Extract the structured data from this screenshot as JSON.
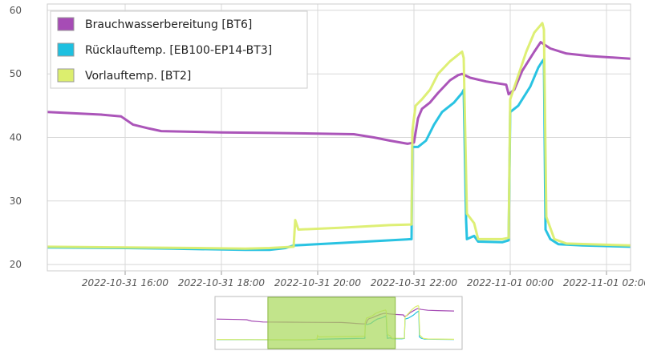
{
  "chart_data": {
    "type": "line",
    "title": "",
    "xlabel": "",
    "ylabel": "",
    "ylim": [
      19,
      61
    ],
    "xlim": [
      "2022-10-31 14:23",
      "2022-11-01 02:30"
    ],
    "y_ticks": [
      20,
      30,
      40,
      50,
      60
    ],
    "x_ticks": [
      {
        "t": "2022-10-31 16:00",
        "label": "2022-10-31 16:00"
      },
      {
        "t": "2022-10-31 18:00",
        "label": "2022-10-31 18:00"
      },
      {
        "t": "2022-10-31 20:00",
        "label": "2022-10-31 20:00"
      },
      {
        "t": "2022-10-31 22:00",
        "label": "2022-10-31 22:00"
      },
      {
        "t": "2022-11-01 00:00",
        "label": "2022-11-01 00:00"
      },
      {
        "t": "2022-11-01 02:00",
        "label": "2022-11-01 02:00"
      }
    ],
    "grid": true,
    "legend_position": "top-left",
    "series": [
      {
        "name": "Brauchwasserbereitung [BT6]",
        "color": "#A64CB5",
        "points": [
          [
            "2022-10-31 14:23",
            44.0
          ],
          [
            "2022-10-31 15:30",
            43.6
          ],
          [
            "2022-10-31 15:55",
            43.3
          ],
          [
            "2022-10-31 16:10",
            42.0
          ],
          [
            "2022-10-31 16:30",
            41.4
          ],
          [
            "2022-10-31 16:45",
            41.0
          ],
          [
            "2022-10-31 18:00",
            40.8
          ],
          [
            "2022-10-31 19:00",
            40.7
          ],
          [
            "2022-10-31 20:00",
            40.6
          ],
          [
            "2022-10-31 20:45",
            40.5
          ],
          [
            "2022-10-31 21:10",
            40.0
          ],
          [
            "2022-10-31 21:30",
            39.5
          ],
          [
            "2022-10-31 21:52",
            39.0
          ],
          [
            "2022-10-31 22:00",
            39.2
          ],
          [
            "2022-10-31 22:05",
            43.0
          ],
          [
            "2022-10-31 22:10",
            44.5
          ],
          [
            "2022-10-31 22:20",
            45.5
          ],
          [
            "2022-10-31 22:30",
            47.0
          ],
          [
            "2022-10-31 22:45",
            49.0
          ],
          [
            "2022-10-31 22:55",
            49.8
          ],
          [
            "2022-10-31 23:00",
            50.0
          ],
          [
            "2022-10-31 23:10",
            49.4
          ],
          [
            "2022-10-31 23:30",
            48.8
          ],
          [
            "2022-10-31 23:55",
            48.3
          ],
          [
            "2022-10-31 23:58",
            46.8
          ],
          [
            "2022-11-01 00:05",
            47.5
          ],
          [
            "2022-11-01 00:15",
            50.5
          ],
          [
            "2022-11-01 00:30",
            53.5
          ],
          [
            "2022-11-01 00:38",
            55.0
          ],
          [
            "2022-11-01 00:50",
            54.0
          ],
          [
            "2022-11-01 01:10",
            53.2
          ],
          [
            "2022-11-01 01:40",
            52.8
          ],
          [
            "2022-11-01 02:30",
            52.4
          ]
        ]
      },
      {
        "name": "Rücklauftemp. [EB100-EP14-BT3]",
        "color": "#1EC0E0",
        "points": [
          [
            "2022-10-31 14:23",
            22.7
          ],
          [
            "2022-10-31 16:00",
            22.6
          ],
          [
            "2022-10-31 17:00",
            22.5
          ],
          [
            "2022-10-31 18:30",
            22.3
          ],
          [
            "2022-10-31 19:00",
            22.3
          ],
          [
            "2022-10-31 19:20",
            22.6
          ],
          [
            "2022-10-31 19:30",
            23.0
          ],
          [
            "2022-10-31 20:30",
            23.4
          ],
          [
            "2022-10-31 21:30",
            23.8
          ],
          [
            "2022-10-31 21:57",
            24.0
          ],
          [
            "2022-10-31 21:58",
            38.5
          ],
          [
            "2022-10-31 22:05",
            38.5
          ],
          [
            "2022-10-31 22:15",
            39.5
          ],
          [
            "2022-10-31 22:25",
            42.0
          ],
          [
            "2022-10-31 22:35",
            44.0
          ],
          [
            "2022-10-31 22:50",
            45.5
          ],
          [
            "2022-10-31 23:00",
            47.0
          ],
          [
            "2022-10-31 23:02",
            47.5
          ],
          [
            "2022-10-31 23:05",
            27.0
          ],
          [
            "2022-10-31 23:06",
            24.0
          ],
          [
            "2022-10-31 23:15",
            24.5
          ],
          [
            "2022-10-31 23:20",
            23.6
          ],
          [
            "2022-10-31 23:50",
            23.5
          ],
          [
            "2022-10-31 23:58",
            23.8
          ],
          [
            "2022-11-01 00:00",
            44.0
          ],
          [
            "2022-11-01 00:10",
            45.0
          ],
          [
            "2022-11-01 00:25",
            48.0
          ],
          [
            "2022-11-01 00:35",
            51.0
          ],
          [
            "2022-11-01 00:40",
            52.0
          ],
          [
            "2022-11-01 00:42",
            52.3
          ],
          [
            "2022-11-01 00:44",
            25.5
          ],
          [
            "2022-11-01 00:50",
            24.0
          ],
          [
            "2022-11-01 01:00",
            23.2
          ],
          [
            "2022-11-01 01:30",
            23.0
          ],
          [
            "2022-11-01 02:30",
            22.8
          ]
        ]
      },
      {
        "name": "Vorlauftemp. [BT2]",
        "color": "#DCEE6E",
        "points": [
          [
            "2022-10-31 14:23",
            22.8
          ],
          [
            "2022-10-31 16:00",
            22.7
          ],
          [
            "2022-10-31 17:30",
            22.6
          ],
          [
            "2022-10-31 18:30",
            22.5
          ],
          [
            "2022-10-31 19:00",
            22.6
          ],
          [
            "2022-10-31 19:30",
            22.8
          ],
          [
            "2022-10-31 19:32",
            27.0
          ],
          [
            "2022-10-31 19:36",
            25.5
          ],
          [
            "2022-10-31 20:30",
            25.8
          ],
          [
            "2022-10-31 21:30",
            26.2
          ],
          [
            "2022-10-31 21:57",
            26.3
          ],
          [
            "2022-10-31 21:58",
            41.0
          ],
          [
            "2022-10-31 22:02",
            45.0
          ],
          [
            "2022-10-31 22:10",
            46.0
          ],
          [
            "2022-10-31 22:20",
            47.5
          ],
          [
            "2022-10-31 22:30",
            50.0
          ],
          [
            "2022-10-31 22:45",
            52.0
          ],
          [
            "2022-10-31 22:55",
            53.0
          ],
          [
            "2022-10-31 23:00",
            53.5
          ],
          [
            "2022-10-31 23:02",
            52.5
          ],
          [
            "2022-10-31 23:06",
            28.0
          ],
          [
            "2022-10-31 23:15",
            26.5
          ],
          [
            "2022-10-31 23:20",
            24.0
          ],
          [
            "2022-10-31 23:50",
            24.0
          ],
          [
            "2022-10-31 23:58",
            24.2
          ],
          [
            "2022-11-01 00:00",
            46.0
          ],
          [
            "2022-11-01 00:08",
            49.0
          ],
          [
            "2022-11-01 00:20",
            53.5
          ],
          [
            "2022-11-01 00:30",
            56.5
          ],
          [
            "2022-11-01 00:40",
            58.0
          ],
          [
            "2022-11-01 00:42",
            57.0
          ],
          [
            "2022-11-01 00:45",
            27.5
          ],
          [
            "2022-11-01 00:55",
            24.0
          ],
          [
            "2022-11-01 01:10",
            23.3
          ],
          [
            "2022-11-01 02:30",
            23.0
          ]
        ]
      }
    ],
    "navigator": {
      "visible": true,
      "range_start": "2022-10-31 14:23",
      "range_end": "2022-11-01 02:30",
      "selection_start": "2022-10-31 17:00",
      "selection_end": "2022-10-31 23:30",
      "selection_color": "#A8D85A"
    }
  }
}
